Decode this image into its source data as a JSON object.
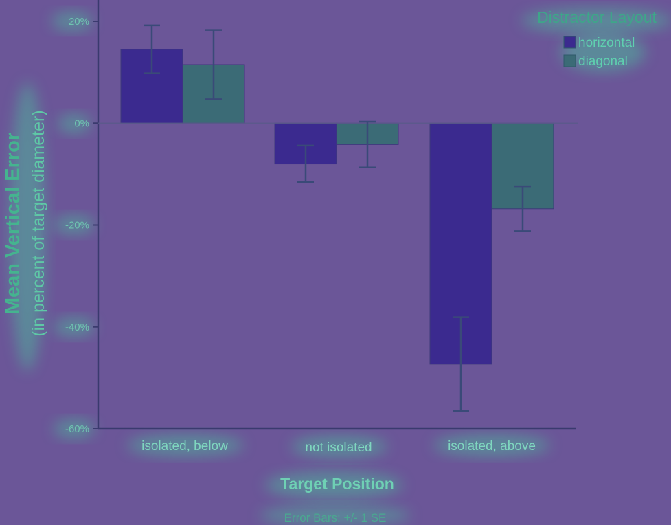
{
  "chart_data": {
    "type": "bar",
    "categories": [
      "isolated, below",
      "not isolated",
      "isolated, above"
    ],
    "series": [
      {
        "name": "horizontal",
        "values": [
          14.5,
          -8,
          -47.3
        ],
        "errors": [
          4.7,
          3.6,
          9.2
        ],
        "color": "#3b2a8f"
      },
      {
        "name": "diagonal",
        "values": [
          11.5,
          -4.2,
          -16.8
        ],
        "errors": [
          6.8,
          4.5,
          4.4
        ],
        "color": "#3b6b76"
      }
    ],
    "xlabel": "Target Position",
    "ylabel": "Mean Vertical Error",
    "ylabel_sub": "(in percent of target diameter)",
    "ylim": [
      -60,
      20
    ],
    "yticks": [
      "20%",
      "0%",
      "-20%",
      "-40%",
      "-60%"
    ],
    "legend_title": "Distractor Layout",
    "legend_position": "top-right",
    "note": "Error Bars: +/- 1 SE",
    "grid": false
  }
}
